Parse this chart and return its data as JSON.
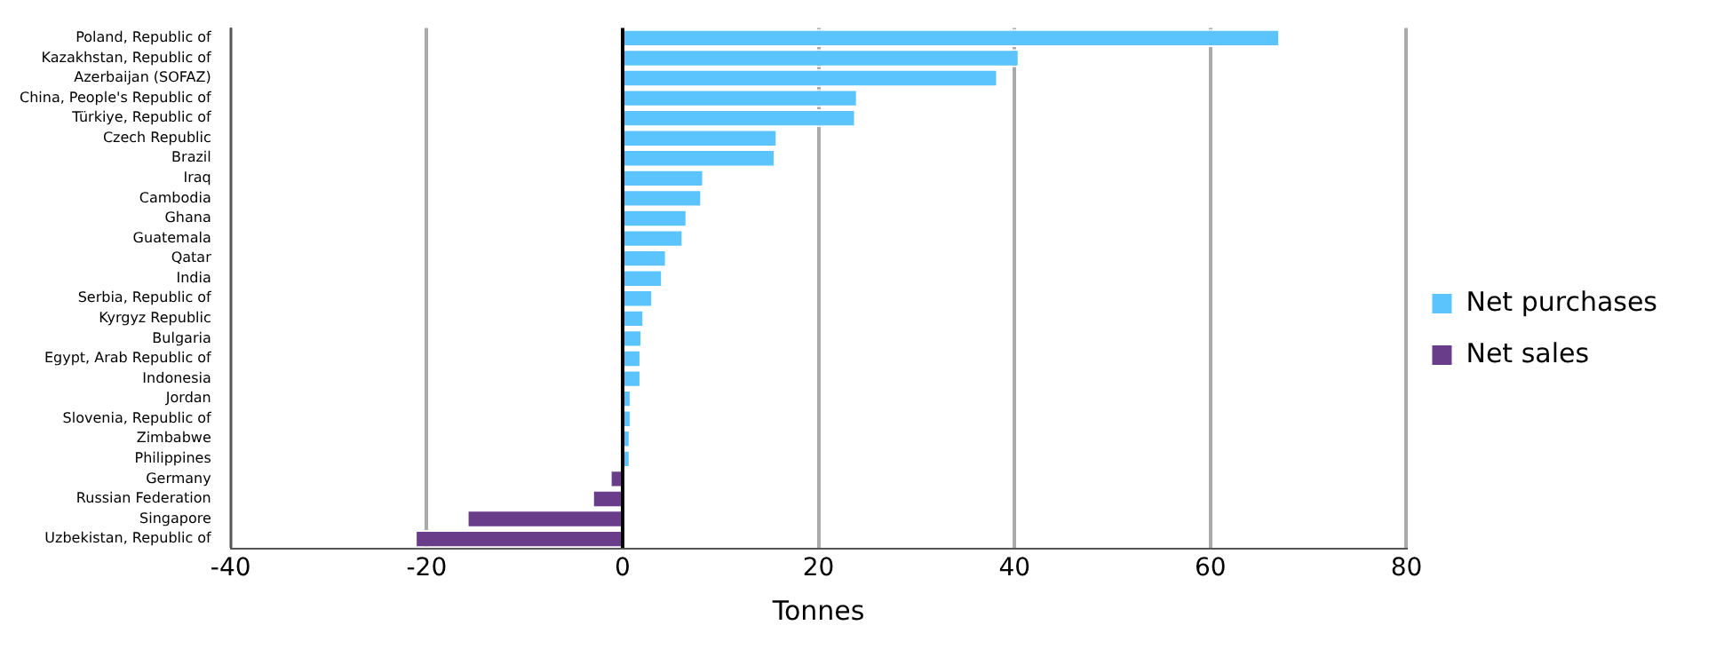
{
  "chart_data": {
    "type": "bar",
    "orientation": "horizontal",
    "stacked": true,
    "xlabel": "Tonnes",
    "categories": [
      "Poland, Republic of",
      "Kazakhstan, Republic of",
      "Azerbaijan (SOFAZ)",
      "China, People's Republic of",
      "Türkiye, Republic of",
      "Czech Republic",
      "Brazil",
      "Iraq",
      "Cambodia",
      "Ghana",
      "Guatemala",
      "Qatar",
      "India",
      "Serbia, Republic of",
      "Kyrgyz Republic",
      "Bulgaria",
      "Egypt, Arab Republic of",
      "Indonesia",
      "Jordan",
      "Slovenia, Republic of",
      "Zimbabwe",
      "Philippines",
      "Germany",
      "Russian Federation",
      "Singapore",
      "Uzbekistan, Republic of"
    ],
    "series": [
      {
        "name": "Net purchases",
        "color": "#5bc4fc",
        "values": [
          67.1,
          40.5,
          38.3,
          24.0,
          23.8,
          15.8,
          15.6,
          8.3,
          8.1,
          6.6,
          6.2,
          4.5,
          4.1,
          3.1,
          2.2,
          2.0,
          1.9,
          1.9,
          0.9,
          0.9,
          0.8,
          0.8,
          null,
          null,
          null,
          null
        ]
      },
      {
        "name": "Net sales",
        "color": "#6a3d8a",
        "values": [
          null,
          null,
          null,
          null,
          null,
          null,
          null,
          null,
          null,
          null,
          null,
          null,
          null,
          null,
          null,
          null,
          null,
          null,
          null,
          null,
          null,
          null,
          -1.3,
          -3.1,
          -15.9,
          -21.2
        ]
      }
    ],
    "xlim": [
      -40,
      80
    ],
    "xticks": [
      -40,
      -20,
      0,
      20,
      40,
      60,
      80
    ],
    "grid": "x",
    "legend": "right"
  }
}
